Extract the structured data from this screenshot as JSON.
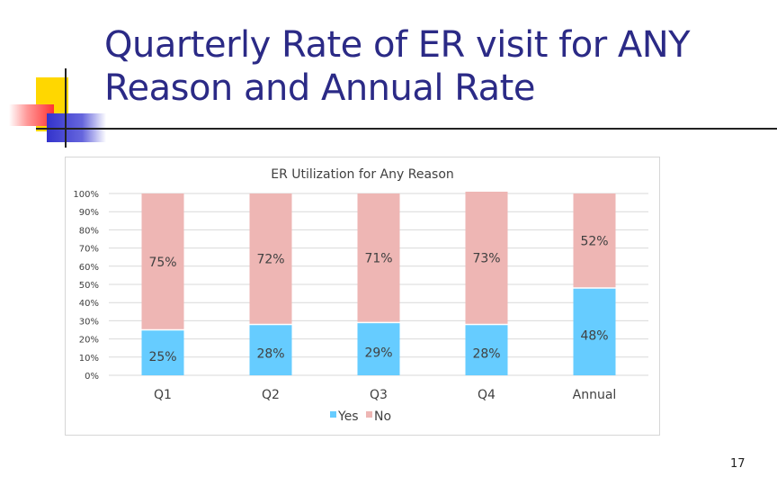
{
  "slide": {
    "title": "Quarterly Rate of ER visit for ANY Reason and Annual Rate",
    "page_number": "17"
  },
  "colors": {
    "title": "#2b2a86",
    "yes": "#66ccff",
    "no": "#eeb6b4",
    "deco_yellow": "#ffd700",
    "deco_red": "#ff4444",
    "deco_blue": "#2222cc"
  },
  "chart_data": {
    "type": "bar",
    "stacked": true,
    "title": "ER Utilization for Any Reason",
    "categories": [
      "Q1",
      "Q2",
      "Q3",
      "Q4",
      "Annual"
    ],
    "series": [
      {
        "name": "Yes",
        "values": [
          25,
          28,
          29,
          28,
          48
        ],
        "labels": [
          "25%",
          "28%",
          "29%",
          "28%",
          "48%"
        ],
        "color": "#66ccff"
      },
      {
        "name": "No",
        "values": [
          75,
          72,
          71,
          73,
          52
        ],
        "labels": [
          "75%",
          "72%",
          "71%",
          "73%",
          "52%"
        ],
        "color": "#eeb6b4"
      }
    ],
    "yticks": [
      "0%",
      "10%",
      "20%",
      "30%",
      "40%",
      "50%",
      "60%",
      "70%",
      "80%",
      "90%",
      "100%"
    ],
    "ylim": [
      0,
      100
    ],
    "grid": true,
    "legend": "bottom"
  }
}
